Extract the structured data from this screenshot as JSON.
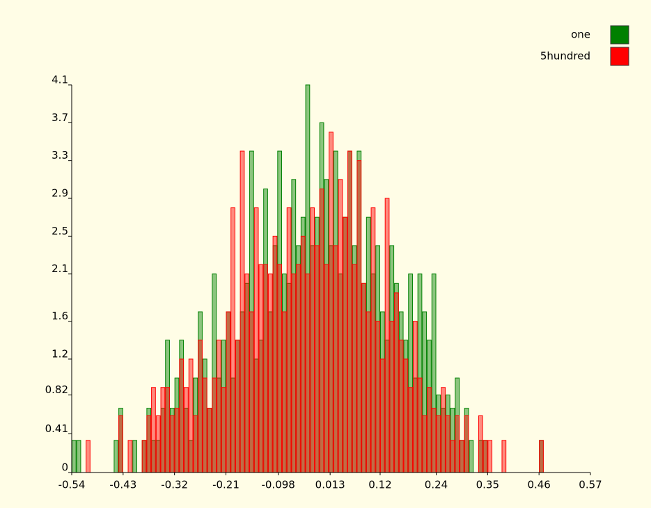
{
  "chart_data": {
    "type": "histogram",
    "bins": [
      -0.54,
      -0.53,
      -0.52,
      -0.51,
      -0.5,
      -0.49,
      -0.48,
      -0.47,
      -0.46,
      -0.45,
      -0.44,
      -0.43,
      -0.42,
      -0.41,
      -0.4,
      -0.39,
      -0.38,
      -0.37,
      -0.36,
      -0.35,
      -0.34,
      -0.33,
      -0.32,
      -0.31,
      -0.3,
      -0.29,
      -0.28,
      -0.27,
      -0.26,
      -0.25,
      -0.24,
      -0.23,
      -0.22,
      -0.21,
      -0.2,
      -0.19,
      -0.18,
      -0.17,
      -0.16,
      -0.15,
      -0.14,
      -0.13,
      -0.12,
      -0.11,
      -0.1,
      -0.09,
      -0.08,
      -0.07,
      -0.06,
      -0.05,
      -0.04,
      -0.03,
      -0.02,
      -0.01,
      0,
      0.01,
      0.02,
      0.03,
      0.04,
      0.05,
      0.06,
      0.07,
      0.08,
      0.09,
      0.1,
      0.11,
      0.12,
      0.13,
      0.14,
      0.15,
      0.16,
      0.17,
      0.18,
      0.19,
      0.2,
      0.21,
      0.22,
      0.23,
      0.24,
      0.25,
      0.26,
      0.27,
      0.28,
      0.29,
      0.3,
      0.31,
      0.32,
      0.33,
      0.34,
      0.35,
      0.36,
      0.37,
      0.38,
      0.39,
      0.4,
      0.41,
      0.42,
      0.43,
      0.44,
      0.45,
      0.46,
      0.47,
      0.48,
      0.49,
      0.5,
      0.51,
      0.52,
      0.53,
      0.54,
      0.55,
      0.56,
      0.57
    ],
    "series": [
      {
        "name": "one",
        "color": "#008000",
        "values": [
          0.34,
          0.34,
          0,
          0,
          0,
          0,
          0,
          0,
          0,
          0.34,
          0.68,
          0,
          0,
          0.34,
          0,
          0.34,
          0.68,
          0.34,
          0.34,
          0.68,
          1.4,
          0.68,
          1.0,
          1.4,
          0.68,
          0.34,
          1.0,
          1.7,
          1.2,
          0.68,
          2.1,
          1.0,
          1.4,
          1.7,
          1.0,
          1.4,
          1.7,
          2.0,
          3.4,
          1.2,
          1.4,
          3.0,
          1.7,
          2.4,
          3.4,
          2.1,
          2.0,
          3.1,
          2.4,
          2.7,
          4.1,
          2.4,
          2.7,
          3.7,
          3.1,
          2.4,
          3.4,
          2.1,
          2.7,
          3.4,
          2.4,
          3.4,
          2.0,
          2.7,
          2.1,
          2.4,
          1.7,
          1.4,
          2.4,
          2.0,
          1.7,
          1.4,
          2.1,
          1.0,
          2.1,
          1.7,
          1.4,
          2.1,
          0.82,
          0.68,
          0.82,
          0.68,
          1.0,
          0.34,
          0.68,
          0.34,
          0,
          0.34,
          0.34,
          0,
          0,
          0,
          0,
          0,
          0,
          0,
          0,
          0,
          0,
          0,
          0.34,
          0,
          0,
          0,
          0,
          0,
          0,
          0,
          0,
          0,
          0
        ]
      },
      {
        "name": "5hundred",
        "color": "#ff0000",
        "values": [
          0,
          0,
          0,
          0.34,
          0,
          0,
          0,
          0,
          0,
          0,
          0.6,
          0,
          0.34,
          0,
          0,
          0.34,
          0.6,
          0.9,
          0.6,
          0.9,
          0.9,
          0.6,
          0.68,
          1.2,
          0.9,
          1.2,
          0.6,
          1.4,
          1.0,
          0.68,
          1.0,
          1.4,
          0.9,
          1.7,
          2.8,
          1.4,
          3.4,
          2.1,
          1.7,
          2.8,
          2.2,
          2.2,
          2.1,
          2.5,
          2.2,
          1.7,
          2.8,
          2.1,
          2.2,
          2.5,
          2.1,
          2.8,
          2.4,
          3.0,
          2.2,
          3.6,
          2.4,
          3.1,
          2.7,
          3.4,
          2.2,
          3.3,
          2.0,
          1.7,
          2.8,
          1.6,
          1.2,
          2.9,
          1.6,
          1.9,
          1.4,
          1.2,
          0.9,
          1.6,
          1.0,
          0.6,
          0.9,
          0.68,
          0.6,
          0.9,
          0.6,
          0.34,
          0.6,
          0.34,
          0.6,
          0,
          0,
          0.6,
          0.34,
          0.34,
          0,
          0,
          0.34,
          0,
          0,
          0,
          0,
          0,
          0,
          0,
          0.34,
          0,
          0,
          0,
          0,
          0,
          0,
          0,
          0,
          0,
          0
        ]
      }
    ],
    "xlim": [
      -0.54,
      0.57
    ],
    "xticks": [
      -0.54,
      -0.43,
      -0.32,
      -0.21,
      -0.098,
      0.013,
      0.12,
      0.24,
      0.35,
      0.46,
      0.57
    ],
    "ylim": [
      0,
      4.1
    ],
    "yticks": [
      0,
      0.41,
      0.82,
      1.2,
      1.6,
      2.1,
      2.5,
      2.9,
      3.3,
      3.7,
      4.1
    ],
    "legend": "top-right"
  }
}
